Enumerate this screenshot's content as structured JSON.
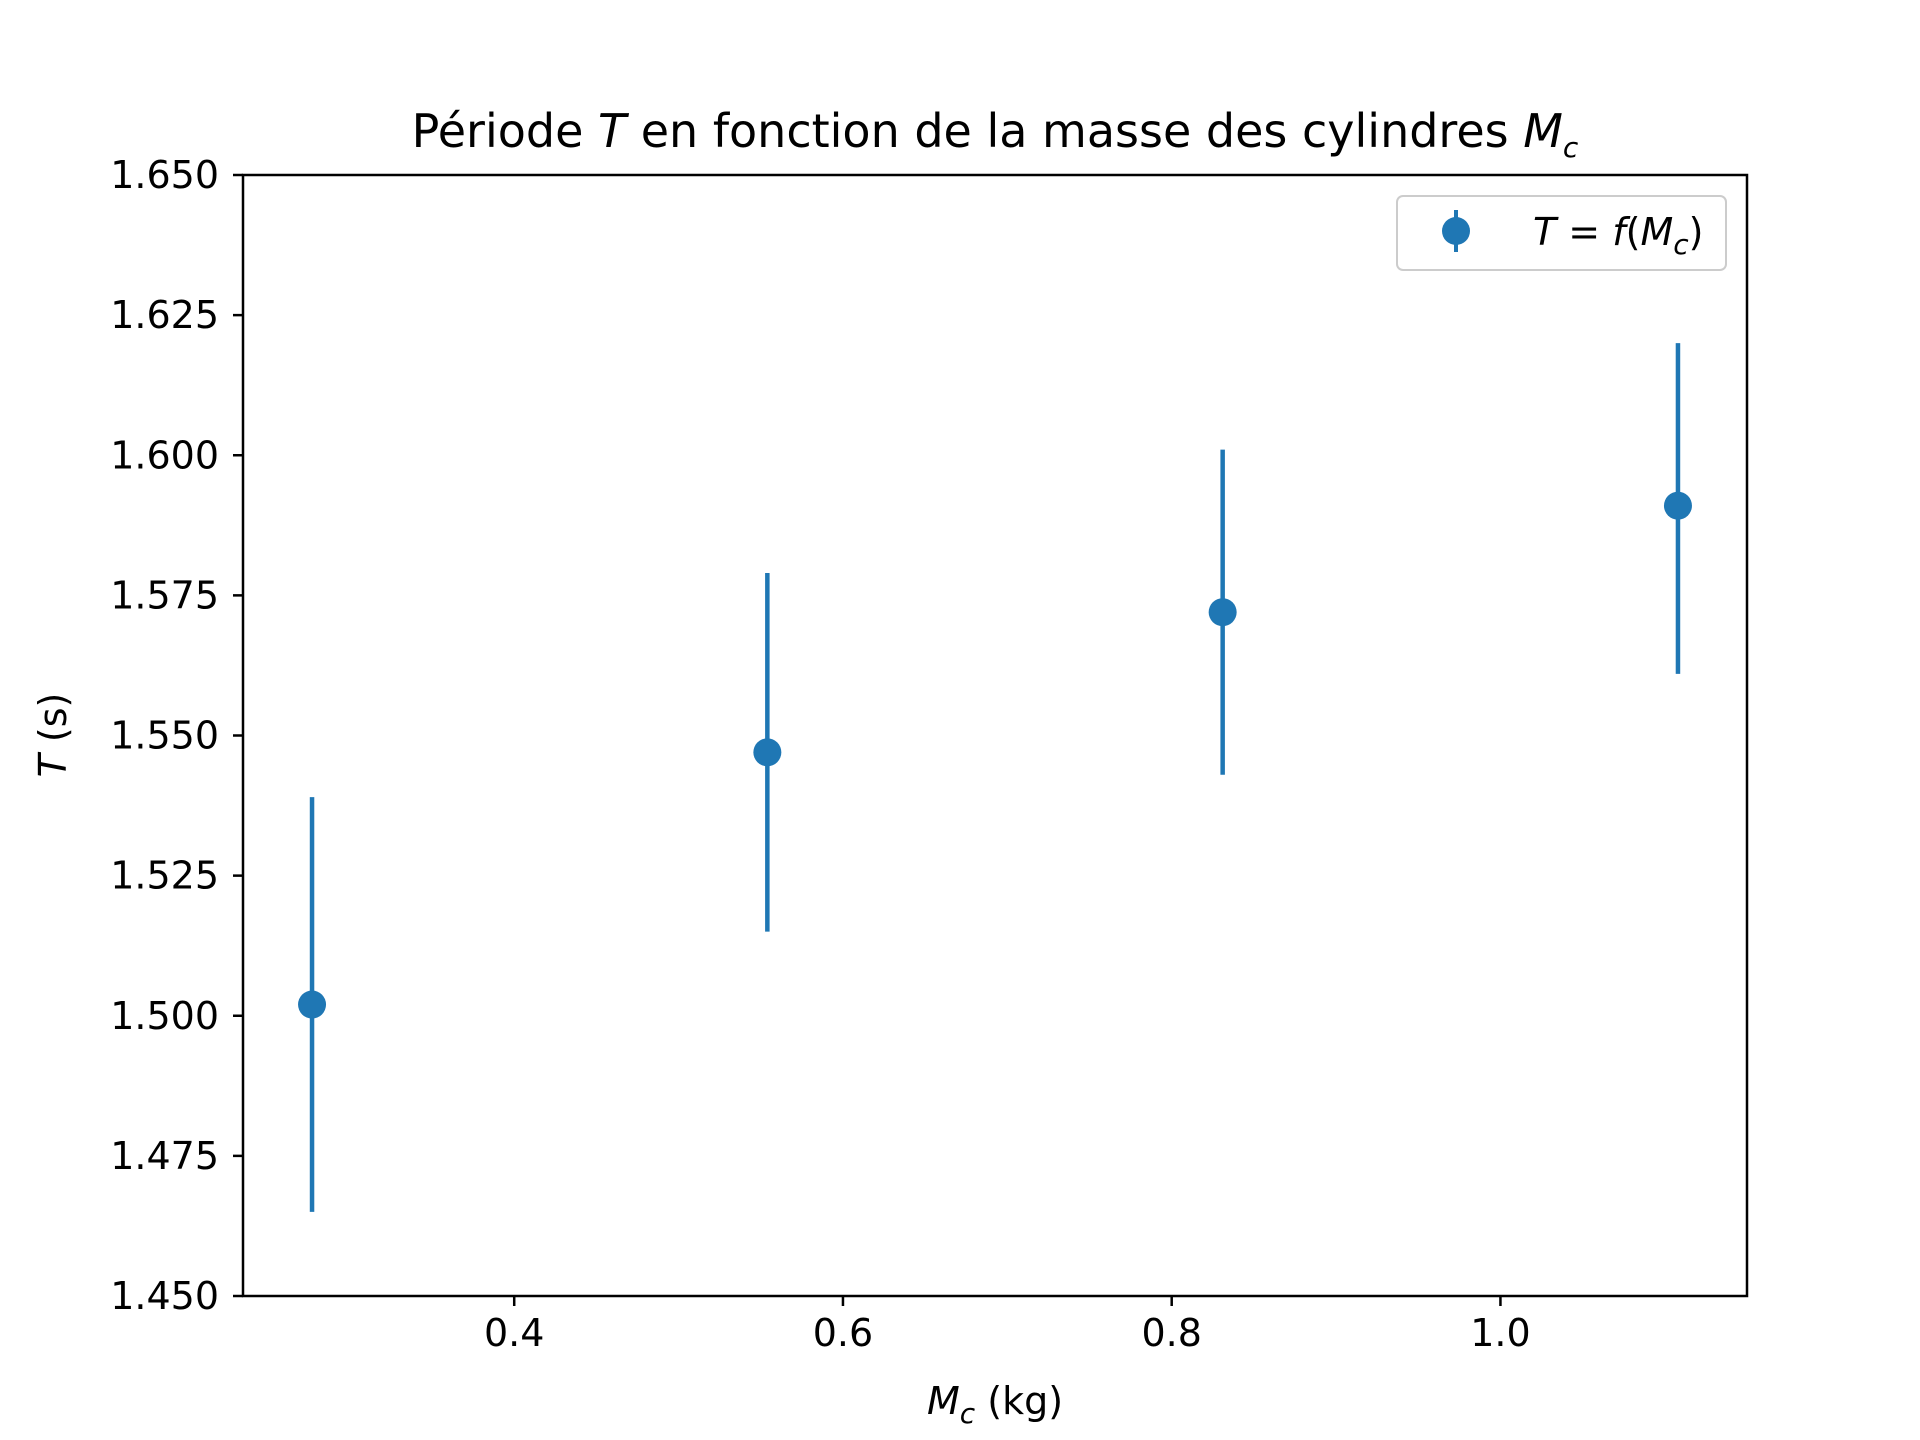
{
  "chart_data": {
    "type": "scatter",
    "title": {
      "prefix": "Période ",
      "var": "T",
      "middle": " en fonction de la masse des cylindres ",
      "var2": "M",
      "var2_sub": "c"
    },
    "xlabel": {
      "var": "M",
      "sub": "c",
      "unit": " (kg)"
    },
    "ylabel": {
      "var": "T",
      "unit": " (s)"
    },
    "xlim": [
      0.235,
      1.15
    ],
    "ylim": [
      1.45,
      1.65
    ],
    "xticks": [
      0.4,
      0.6,
      0.8,
      1.0
    ],
    "xtick_labels": [
      "0.4",
      "0.6",
      "0.8",
      "1.0"
    ],
    "yticks": [
      1.45,
      1.475,
      1.5,
      1.525,
      1.55,
      1.575,
      1.6,
      1.625,
      1.65
    ],
    "ytick_labels": [
      "1.450",
      "1.475",
      "1.500",
      "1.525",
      "1.550",
      "1.575",
      "1.600",
      "1.625",
      "1.650"
    ],
    "grid": false,
    "legend_position": "top-right",
    "color": "#1f77b4",
    "series": [
      {
        "name": "T = f(Mc)",
        "legend_label": {
          "lhs": "T",
          "eq": " = ",
          "f": "f",
          "open": "(",
          "M": "M",
          "sub": "c",
          "close": ")"
        },
        "points": [
          {
            "x": 0.277,
            "y": 1.502,
            "yerr_low": 1.465,
            "yerr_high": 1.539
          },
          {
            "x": 0.554,
            "y": 1.547,
            "yerr_low": 1.515,
            "yerr_high": 1.579
          },
          {
            "x": 0.831,
            "y": 1.572,
            "yerr_low": 1.543,
            "yerr_high": 1.601
          },
          {
            "x": 1.108,
            "y": 1.591,
            "yerr_low": 1.561,
            "yerr_high": 1.62
          }
        ]
      }
    ]
  }
}
